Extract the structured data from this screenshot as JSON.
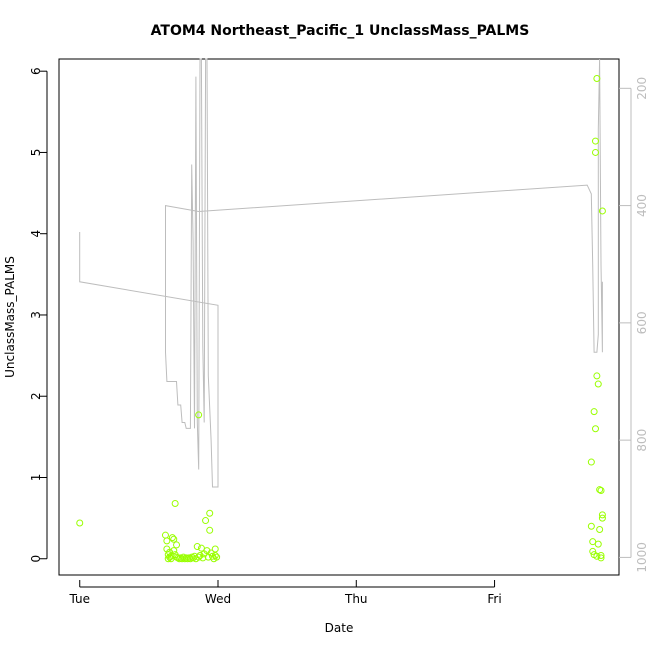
{
  "chart_data": {
    "type": "scatter",
    "title": "ATOM4 Northeast_Pacific_1 UnclassMass_PALMS",
    "xlabel": "Date",
    "ylabel": "UnclassMass_PALMS",
    "x_axis": {
      "ticks": [
        0,
        1,
        2,
        3
      ],
      "tick_labels": [
        "Tue",
        "Wed",
        "Thu",
        "Fri"
      ],
      "xlim": [
        -0.15,
        3.9
      ]
    },
    "y_axis": {
      "ticks": [
        0,
        1,
        2,
        3,
        4,
        5,
        6
      ],
      "tick_labels": [
        "0",
        "1",
        "2",
        "3",
        "4",
        "5",
        "6"
      ],
      "ylim": [
        -0.2,
        6.15
      ]
    },
    "y2_axis": {
      "ticks": [
        200,
        400,
        600,
        800,
        1000
      ],
      "tick_labels": [
        "200",
        "400",
        "600",
        "800",
        "1000"
      ],
      "reversed": true,
      "ylim": [
        150,
        1030
      ],
      "color": "#bdbdbd"
    },
    "series": [
      {
        "style": "points",
        "axis": "left",
        "color": "#99ff00",
        "points": [
          [
            0.0,
            0.44
          ],
          [
            0.62,
            0.29
          ],
          [
            0.63,
            0.22
          ],
          [
            0.63,
            0.12
          ],
          [
            0.64,
            0.05
          ],
          [
            0.64,
            0.0
          ],
          [
            0.65,
            0.02
          ],
          [
            0.65,
            0.08
          ],
          [
            0.66,
            0.0
          ],
          [
            0.66,
            0.03
          ],
          [
            0.67,
            0.26
          ],
          [
            0.68,
            0.24
          ],
          [
            0.68,
            0.1
          ],
          [
            0.69,
            0.05
          ],
          [
            0.69,
            0.68
          ],
          [
            0.7,
            0.17
          ],
          [
            0.7,
            0.02
          ],
          [
            0.71,
            0.01
          ],
          [
            0.72,
            0.0
          ],
          [
            0.73,
            0.01
          ],
          [
            0.74,
            0.0
          ],
          [
            0.75,
            0.02
          ],
          [
            0.76,
            0.0
          ],
          [
            0.77,
            0.01
          ],
          [
            0.78,
            0.0
          ],
          [
            0.79,
            0.01
          ],
          [
            0.8,
            0.0
          ],
          [
            0.81,
            0.02
          ],
          [
            0.82,
            0.01
          ],
          [
            0.83,
            0.03
          ],
          [
            0.84,
            0.0
          ],
          [
            0.85,
            0.15
          ],
          [
            0.86,
            1.77
          ],
          [
            0.86,
            0.02
          ],
          [
            0.87,
            0.04
          ],
          [
            0.88,
            0.13
          ],
          [
            0.89,
            0.01
          ],
          [
            0.9,
            0.06
          ],
          [
            0.91,
            0.47
          ],
          [
            0.92,
            0.1
          ],
          [
            0.93,
            0.02
          ],
          [
            0.94,
            0.56
          ],
          [
            0.94,
            0.35
          ],
          [
            0.95,
            0.07
          ],
          [
            0.96,
            0.03
          ],
          [
            0.97,
            0.0
          ],
          [
            0.98,
            0.12
          ],
          [
            0.98,
            0.04
          ],
          [
            0.99,
            0.02
          ],
          [
            3.7,
            1.19
          ],
          [
            3.7,
            0.4
          ],
          [
            3.71,
            0.21
          ],
          [
            3.71,
            0.09
          ],
          [
            3.72,
            1.81
          ],
          [
            3.72,
            0.05
          ],
          [
            3.73,
            5.14
          ],
          [
            3.73,
            5.0
          ],
          [
            3.73,
            1.6
          ],
          [
            3.74,
            5.91
          ],
          [
            3.74,
            2.25
          ],
          [
            3.74,
            0.03
          ],
          [
            3.75,
            2.15
          ],
          [
            3.75,
            0.18
          ],
          [
            3.76,
            0.85
          ],
          [
            3.76,
            0.36
          ],
          [
            3.77,
            0.04
          ],
          [
            3.77,
            0.84
          ],
          [
            3.78,
            4.28
          ],
          [
            3.78,
            0.54
          ],
          [
            3.78,
            0.5
          ],
          [
            3.77,
            0.01
          ]
        ]
      },
      {
        "style": "line",
        "axis": "right",
        "color": "#bdbdbd",
        "points": [
          [
            0.0,
            445
          ],
          [
            0.0,
            530
          ],
          [
            1.0,
            570
          ],
          [
            1.0,
            880
          ],
          [
            0.96,
            880
          ],
          [
            0.95,
            800
          ],
          [
            0.93,
            690
          ],
          [
            0.92,
            150
          ],
          [
            0.91,
            150
          ],
          [
            0.9,
            770
          ],
          [
            0.89,
            640
          ],
          [
            0.88,
            150
          ],
          [
            0.87,
            150
          ],
          [
            0.86,
            850
          ],
          [
            0.85,
            770
          ],
          [
            0.84,
            180
          ],
          [
            0.83,
            780
          ],
          [
            0.82,
            460
          ],
          [
            0.81,
            330
          ],
          [
            0.8,
            780
          ],
          [
            0.77,
            780
          ],
          [
            0.76,
            770
          ],
          [
            0.74,
            770
          ],
          [
            0.73,
            740
          ],
          [
            0.71,
            740
          ],
          [
            0.7,
            700
          ],
          [
            0.63,
            700
          ],
          [
            0.62,
            650
          ],
          [
            0.62,
            400
          ],
          [
            0.86,
            410
          ],
          [
            3.67,
            365
          ],
          [
            3.7,
            380
          ],
          [
            3.71,
            500
          ],
          [
            3.72,
            650
          ],
          [
            3.74,
            650
          ],
          [
            3.75,
            620
          ],
          [
            3.75,
            270
          ],
          [
            3.76,
            150
          ],
          [
            3.76,
            150
          ],
          [
            3.77,
            500
          ],
          [
            3.78,
            650
          ],
          [
            3.78,
            530
          ]
        ]
      }
    ]
  }
}
